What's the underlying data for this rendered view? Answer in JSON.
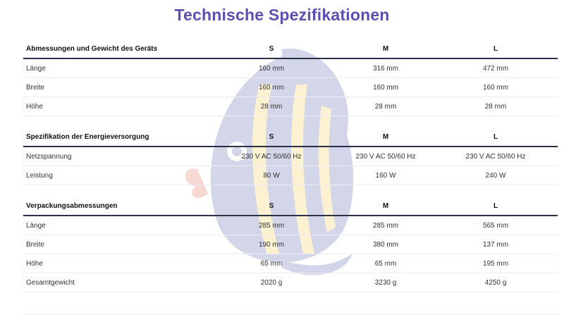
{
  "title": "Technische Spezifikationen",
  "sections": [
    {
      "header": [
        "Abmessungen und Gewicht des Geräts",
        "S",
        "M",
        "L"
      ],
      "rows": [
        [
          "Länge",
          "160 mm",
          "316 mm",
          "472 mm"
        ],
        [
          "Breite",
          "160 mm",
          "160 mm",
          "160 mm"
        ],
        [
          "Höhe",
          "28 mm",
          "28 mm",
          "28 mm"
        ]
      ]
    },
    {
      "header": [
        "Spezifikation der Energieversorgung",
        "S",
        "M",
        "L"
      ],
      "rows": [
        [
          "Netzspannung",
          "230 V AC 50/60 Hz",
          "230 V AC 50/60 Hz",
          "230 V AC 50/60 Hz"
        ],
        [
          "Leistung",
          "80 W",
          "160 W",
          "240 W"
        ]
      ]
    },
    {
      "header": [
        "Verpackungsabmessungen",
        "S",
        "M",
        "L"
      ],
      "rows": [
        [
          "Länge",
          "285 mm",
          "285 mm",
          "565 mm"
        ],
        [
          "Breite",
          "190 mm",
          "380 mm",
          "137 mm"
        ],
        [
          "Höhe",
          "65 mm",
          "65 mm",
          "195 mm"
        ],
        [
          "Gesamtgewicht",
          "2020 g",
          "3230 g",
          "4250 g"
        ]
      ]
    }
  ],
  "colors": {
    "title": "#5b4fb3",
    "header_rule": "#2a2f4a",
    "row_rule": "#ececf2",
    "watermark_blue": "#3a4a9a",
    "watermark_yellow": "#f2c230",
    "watermark_red": "#e0523a"
  },
  "icons": {
    "watermark": "fish-logo-icon"
  }
}
